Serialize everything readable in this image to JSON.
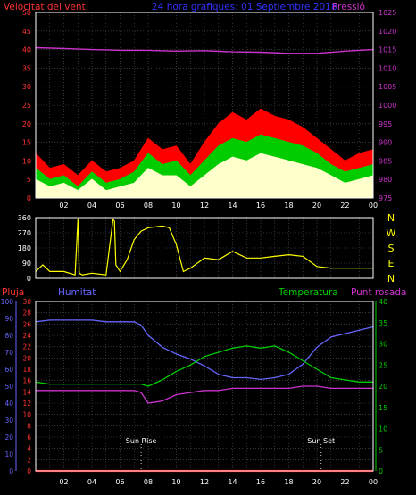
{
  "chart_data": [
    {
      "id": "wind-pressure",
      "type": "line",
      "title": "24 hora grafiques: 01 Septiembre 2018",
      "left_axis_label": "Velocitat del vent",
      "right_axis_label": "Pressió",
      "x_ticks": [
        "02",
        "04",
        "06",
        "08",
        "10",
        "12",
        "14",
        "16",
        "18",
        "20",
        "22",
        "00"
      ],
      "x_range": [
        0,
        24
      ],
      "y_left_ticks": [
        0,
        5,
        10,
        15,
        20,
        25,
        30,
        35,
        40,
        45,
        50
      ],
      "y_left_range": [
        0,
        50
      ],
      "y_right_ticks": [
        975,
        980,
        985,
        990,
        995,
        1000,
        1005,
        1010,
        1015,
        1020,
        1025
      ],
      "y_right_range": [
        975,
        1025
      ],
      "grid": true,
      "colors": {
        "gust": "#ff0000",
        "speed": "#00cc00",
        "avg": "#ffffcc",
        "pressure": "#cc33cc",
        "left_axis": "#ff3333",
        "right_axis": "#cc33cc",
        "title": "#3333ff"
      },
      "series": [
        {
          "key": "pressure",
          "axis": "right",
          "x": [
            0,
            2,
            4,
            6,
            8,
            10,
            12,
            14,
            16,
            18,
            20,
            22,
            24
          ],
          "values": [
            1015.5,
            1015.3,
            1015,
            1014.8,
            1014.8,
            1014.6,
            1014.7,
            1014.4,
            1014.3,
            1014,
            1014,
            1014.6,
            1015
          ]
        },
        {
          "key": "gust",
          "axis": "left",
          "x": [
            0,
            1,
            2,
            3,
            4,
            5,
            6,
            7,
            8,
            9,
            10,
            11,
            12,
            13,
            14,
            15,
            16,
            17,
            18,
            19,
            20,
            21,
            22,
            23,
            24
          ],
          "values": [
            12,
            8,
            9,
            6,
            10,
            7,
            8,
            10,
            16,
            13,
            14,
            9,
            15,
            20,
            23,
            21,
            24,
            22,
            21,
            19,
            16,
            13,
            10,
            12,
            13
          ]
        },
        {
          "key": "speed",
          "axis": "left",
          "x": [
            0,
            1,
            2,
            3,
            4,
            5,
            6,
            7,
            8,
            9,
            10,
            11,
            12,
            13,
            14,
            15,
            16,
            17,
            18,
            19,
            20,
            21,
            22,
            23,
            24
          ],
          "values": [
            8,
            5,
            6,
            3,
            7,
            4,
            5,
            7,
            12,
            9,
            10,
            6,
            10,
            14,
            16,
            15,
            17,
            16,
            15,
            14,
            12,
            9,
            7,
            8,
            9
          ]
        },
        {
          "key": "avg",
          "axis": "left",
          "x": [
            0,
            1,
            2,
            3,
            4,
            5,
            6,
            7,
            8,
            9,
            10,
            11,
            12,
            13,
            14,
            15,
            16,
            17,
            18,
            19,
            20,
            21,
            22,
            23,
            24
          ],
          "values": [
            5,
            3,
            4,
            2,
            5,
            2,
            3,
            4,
            8,
            6,
            6,
            3,
            6,
            9,
            11,
            10,
            12,
            11,
            10,
            9,
            8,
            6,
            4,
            5,
            6
          ]
        }
      ]
    },
    {
      "id": "wind-direction",
      "type": "line",
      "x_ticks": [],
      "x_range": [
        0,
        24
      ],
      "y_ticks": [
        0,
        90,
        180,
        270,
        360
      ],
      "y_range": [
        0,
        360
      ],
      "compass_labels": [
        "N",
        "W",
        "S",
        "E",
        "N"
      ],
      "grid": true,
      "colors": {
        "direction": "#ffff00",
        "axis": "#ffffff"
      },
      "series": [
        {
          "key": "direction",
          "x": [
            0,
            0.5,
            1,
            2,
            2.8,
            3,
            3.1,
            3.3,
            4,
            5,
            5.5,
            5.6,
            5.7,
            6,
            6.5,
            7,
            7.5,
            8,
            9,
            9.5,
            10,
            10.5,
            11,
            12,
            13,
            14,
            15,
            16,
            17,
            18,
            19,
            20,
            21,
            22,
            23,
            24
          ],
          "values": [
            40,
            80,
            40,
            40,
            20,
            350,
            30,
            20,
            30,
            20,
            350,
            340,
            80,
            40,
            110,
            230,
            280,
            300,
            310,
            300,
            200,
            40,
            60,
            120,
            110,
            160,
            120,
            120,
            130,
            140,
            130,
            70,
            60,
            60,
            60,
            60
          ]
        }
      ]
    },
    {
      "id": "rain-humidity-temp",
      "type": "line",
      "labels": [
        "Pluja",
        "Humitat",
        "Temperatura",
        "Punt rosada"
      ],
      "x_ticks": [
        "02",
        "04",
        "06",
        "08",
        "10",
        "12",
        "14",
        "16",
        "18",
        "20",
        "22",
        "00"
      ],
      "x_range": [
        0,
        24
      ],
      "y_rain_ticks": [
        0,
        2,
        4,
        6,
        8,
        10,
        12,
        14,
        16,
        18,
        20,
        22,
        24,
        26,
        28,
        30
      ],
      "y_rain_range": [
        0,
        30
      ],
      "y_humidity_ticks": [
        0,
        10,
        20,
        30,
        40,
        50,
        60,
        70,
        80,
        90,
        100
      ],
      "y_humidity_range": [
        0,
        100
      ],
      "y_temp_ticks": [
        0,
        5,
        10,
        15,
        20,
        25,
        30,
        35,
        40
      ],
      "y_temp_range": [
        0,
        40
      ],
      "annotations": [
        {
          "label": "Sun Rise",
          "x": 7.5
        },
        {
          "label": "Sun Set",
          "x": 20.3
        }
      ],
      "grid": true,
      "colors": {
        "rain": "#ff0000",
        "humidity": "#6666ff",
        "temperature": "#00cc00",
        "dewpoint": "#cc33cc",
        "humidity_axis": "#6666ff",
        "temp_axis": "#00cc00"
      },
      "series": [
        {
          "key": "humidity",
          "axis": "humidity",
          "x": [
            0,
            1,
            2,
            3,
            4,
            5,
            6,
            7,
            7.5,
            8,
            9,
            10,
            11,
            12,
            13,
            14,
            15,
            16,
            17,
            18,
            19,
            20,
            21,
            22,
            23,
            24
          ],
          "values": [
            88,
            89,
            89,
            89,
            89,
            88,
            88,
            88,
            86,
            80,
            73,
            69,
            66,
            62,
            57,
            55,
            55,
            54,
            55,
            57,
            63,
            73,
            79,
            81,
            83,
            85
          ]
        },
        {
          "key": "temperature",
          "axis": "temp",
          "x": [
            0,
            1,
            2,
            3,
            4,
            5,
            6,
            7,
            7.5,
            8,
            9,
            10,
            11,
            12,
            13,
            14,
            15,
            16,
            17,
            18,
            19,
            20,
            21,
            22,
            23,
            24
          ],
          "values": [
            21,
            20.5,
            20.5,
            20.5,
            20.5,
            20.5,
            20.5,
            20.5,
            20.5,
            20,
            21.5,
            23.5,
            25,
            27,
            28,
            29,
            29.5,
            29,
            29.5,
            28,
            26,
            24,
            22,
            21.5,
            21,
            21
          ]
        },
        {
          "key": "dewpoint",
          "axis": "temp",
          "x": [
            0,
            1,
            2,
            3,
            4,
            5,
            6,
            7,
            7.5,
            8,
            9,
            10,
            11,
            12,
            13,
            14,
            15,
            16,
            17,
            18,
            19,
            20,
            21,
            22,
            23,
            24
          ],
          "values": [
            19,
            19,
            19,
            19,
            19,
            19,
            19,
            19,
            18.5,
            16,
            16.5,
            18,
            18.5,
            19,
            19,
            19.5,
            19.5,
            19.5,
            19.5,
            19.5,
            20,
            20,
            19.5,
            19.5,
            19.5,
            19.5
          ]
        },
        {
          "key": "rain",
          "axis": "rain",
          "x": [
            0,
            24
          ],
          "values": [
            0,
            0
          ]
        }
      ]
    }
  ]
}
